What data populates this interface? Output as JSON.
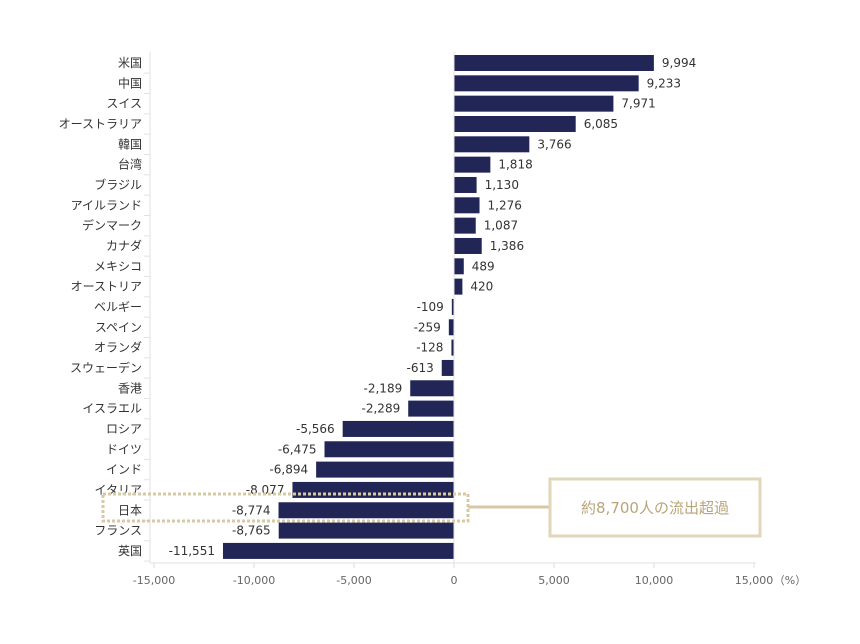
{
  "chart_data": {
    "type": "bar",
    "orientation": "horizontal",
    "categories": [
      "米国",
      "中国",
      "スイス",
      "オーストラリア",
      "韓国",
      "台湾",
      "ブラジル",
      "アイルランド",
      "デンマーク",
      "カナダ",
      "メキシコ",
      "オーストリア",
      "ベルギー",
      "スペイン",
      "オランダ",
      "スウェーデン",
      "香港",
      "イスラエル",
      "ロシア",
      "ドイツ",
      "インド",
      "イタリア",
      "日本",
      "フランス",
      "英国"
    ],
    "values": [
      9994,
      9233,
      7971,
      6085,
      3766,
      1818,
      1130,
      1276,
      1087,
      1386,
      489,
      420,
      -109,
      -259,
      -128,
      -613,
      -2189,
      -2289,
      -5566,
      -6475,
      -6894,
      -8077,
      -8774,
      -8765,
      -11551
    ],
    "value_labels": [
      "9,994",
      "9,233",
      "7,971",
      "6,085",
      "3,766",
      "1,818",
      "1,130",
      "1,276",
      "1,087",
      "1,386",
      "489",
      "420",
      "-109",
      "-259",
      "-128",
      "-613",
      "-2,189",
      "-2,289",
      "-5,566",
      "-6,475",
      "-6,894",
      "-8,077",
      "-8,774",
      "-8,765",
      "-11,551"
    ],
    "xlim": [
      -15000,
      15000
    ],
    "x_ticks": [
      -15000,
      -10000,
      -5000,
      0,
      5000,
      10000,
      15000
    ],
    "x_tick_labels": [
      "-15,000",
      "-10,000",
      "-5,000",
      "0",
      "5,000",
      "10,000",
      "15,000"
    ],
    "x_unit": "（%）",
    "bar_color": "#222656",
    "highlight_category": "日本",
    "highlight_color": "#d6c9a3",
    "annotation": "約8,700人の流出超過",
    "grid": false
  }
}
